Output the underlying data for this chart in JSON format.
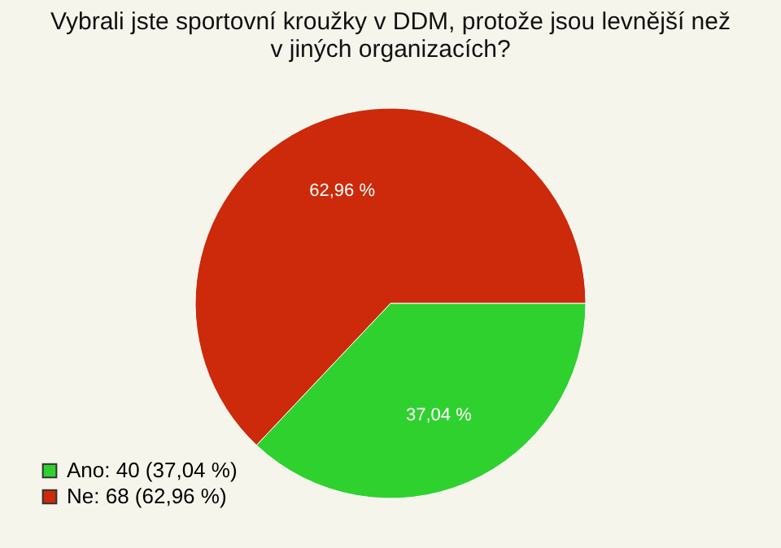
{
  "chart_data": {
    "type": "pie",
    "title": "Vybrali jste sportovní kroužky v DDM, protože jsou levnější než v jiných organizacích?",
    "categories": [
      "Ano: 40 (37,04 %)",
      "Ne: 68 (62,96 %)"
    ],
    "values": [
      37.04,
      62.96
    ],
    "colors": [
      "#2fd12f",
      "#cc2a0a"
    ],
    "value_labels": [
      "37,04 %",
      "62,96 %"
    ],
    "legend": "bottom left"
  }
}
